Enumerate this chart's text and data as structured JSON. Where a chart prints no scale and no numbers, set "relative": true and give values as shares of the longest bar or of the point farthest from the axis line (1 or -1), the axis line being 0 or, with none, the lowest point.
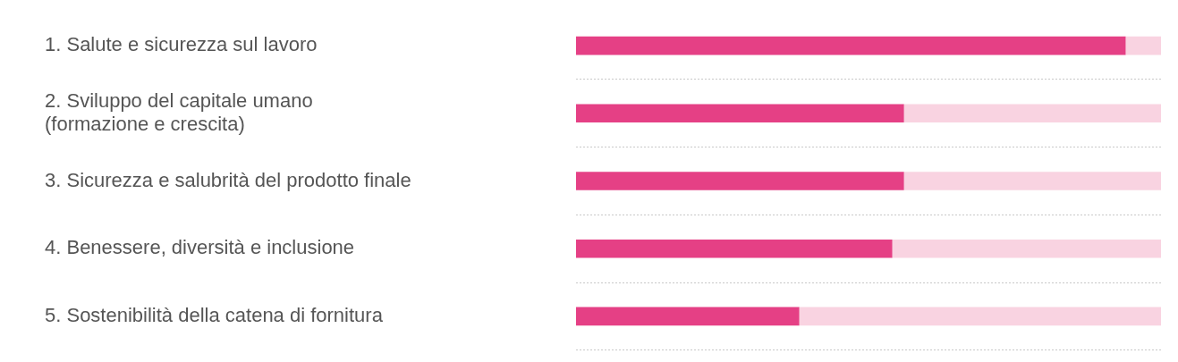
{
  "chart_data": {
    "type": "bar",
    "orientation": "horizontal",
    "stacked": true,
    "relative": true,
    "grid": "y",
    "legend": false,
    "categories": [
      "1. Salute e sicurezza sul lavoro",
      "2. Sviluppo del capitale umano\n(formazione e crescita)",
      "3. Sicurezza e salubrità del prodotto finale",
      "4. Benessere, diversità e inclusione",
      "5. Sostenibilità della catena di fornitura"
    ],
    "series": [
      {
        "color": "#e54085",
        "values": [
          0.939,
          0.56,
          0.56,
          0.54,
          0.381
        ]
      },
      {
        "color": "#f9d3e1",
        "values": [
          0.061,
          0.44,
          0.44,
          0.46,
          0.619
        ]
      }
    ]
  }
}
